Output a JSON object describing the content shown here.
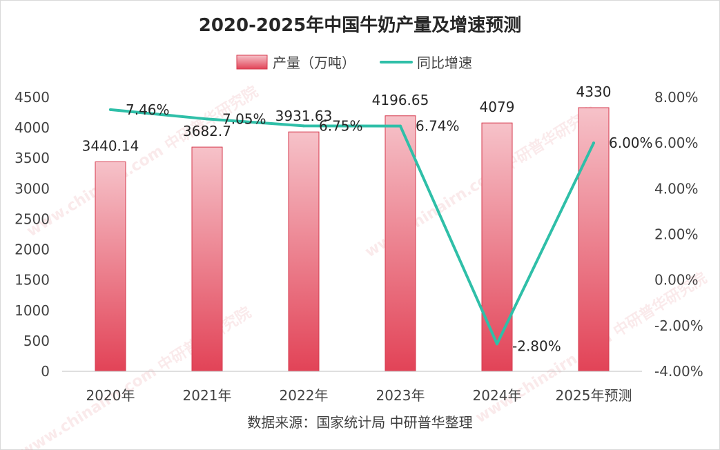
{
  "title": "2020-2025年中国牛奶产量及增速预测",
  "source": "数据来源：国家统计局 中研普华整理",
  "watermark": "www.chinairn.com 中研普华研究院",
  "colors": {
    "bar_top": "#f6c2c9",
    "bar_bottom": "#e24357",
    "bar_stroke": "#d63a4e",
    "line": "#2fbfa8"
  },
  "chart_data": {
    "type": "bar",
    "categories": [
      "2020年",
      "2021年",
      "2022年",
      "2023年",
      "2024年",
      "2025年预测"
    ],
    "series": [
      {
        "name": "产量（万吨）",
        "type": "bar",
        "axis": "left",
        "values": [
          3440.14,
          3682.7,
          3931.63,
          4196.65,
          4079,
          4330
        ],
        "labels": [
          "3440.14",
          "3682.7",
          "3931.63",
          "4196.65",
          "4079",
          "4330"
        ]
      },
      {
        "name": "同比增速",
        "type": "line",
        "axis": "right",
        "values": [
          7.46,
          7.05,
          6.75,
          6.74,
          -2.8,
          6.0
        ],
        "labels": [
          "7.46%",
          "7.05%",
          "6.75%",
          "6.74%",
          "-2.80%",
          "6.00%"
        ]
      }
    ],
    "y_left": {
      "min": 0,
      "max": 4500,
      "step": 500,
      "ticks": [
        "0",
        "500",
        "1000",
        "1500",
        "2000",
        "2500",
        "3000",
        "3500",
        "4000",
        "4500"
      ]
    },
    "y_right": {
      "min": -4,
      "max": 8,
      "step": 2,
      "ticks": [
        "-4.00%",
        "-2.00%",
        "0.00%",
        "2.00%",
        "4.00%",
        "6.00%",
        "8.00%"
      ]
    },
    "grid": false,
    "legend_position": "top"
  }
}
